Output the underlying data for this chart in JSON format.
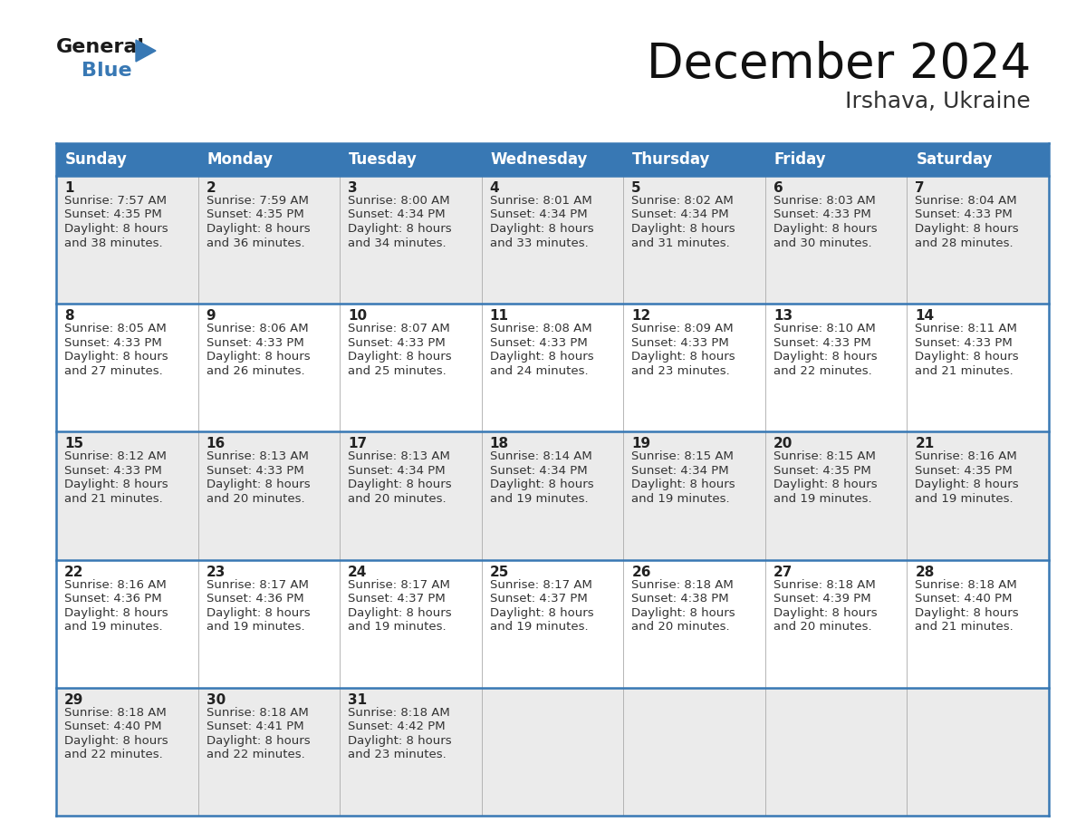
{
  "title": "December 2024",
  "subtitle": "Irshava, Ukraine",
  "header_bg": "#3878b4",
  "header_text_color": "#ffffff",
  "days_of_week": [
    "Sunday",
    "Monday",
    "Tuesday",
    "Wednesday",
    "Thursday",
    "Friday",
    "Saturday"
  ],
  "cell_bg_odd": "#ebebeb",
  "cell_bg_even": "#ffffff",
  "cell_text_color": "#333333",
  "day_num_color": "#222222",
  "border_color": "#3878b4",
  "grid_line_color": "#aaaaaa",
  "calendar": [
    [
      {
        "day": 1,
        "sunrise": "7:57 AM",
        "sunset": "4:35 PM",
        "daylight_suffix": "38 minutes."
      },
      {
        "day": 2,
        "sunrise": "7:59 AM",
        "sunset": "4:35 PM",
        "daylight_suffix": "36 minutes."
      },
      {
        "day": 3,
        "sunrise": "8:00 AM",
        "sunset": "4:34 PM",
        "daylight_suffix": "34 minutes."
      },
      {
        "day": 4,
        "sunrise": "8:01 AM",
        "sunset": "4:34 PM",
        "daylight_suffix": "33 minutes."
      },
      {
        "day": 5,
        "sunrise": "8:02 AM",
        "sunset": "4:34 PM",
        "daylight_suffix": "31 minutes."
      },
      {
        "day": 6,
        "sunrise": "8:03 AM",
        "sunset": "4:33 PM",
        "daylight_suffix": "30 minutes."
      },
      {
        "day": 7,
        "sunrise": "8:04 AM",
        "sunset": "4:33 PM",
        "daylight_suffix": "28 minutes."
      }
    ],
    [
      {
        "day": 8,
        "sunrise": "8:05 AM",
        "sunset": "4:33 PM",
        "daylight_suffix": "27 minutes."
      },
      {
        "day": 9,
        "sunrise": "8:06 AM",
        "sunset": "4:33 PM",
        "daylight_suffix": "26 minutes."
      },
      {
        "day": 10,
        "sunrise": "8:07 AM",
        "sunset": "4:33 PM",
        "daylight_suffix": "25 minutes."
      },
      {
        "day": 11,
        "sunrise": "8:08 AM",
        "sunset": "4:33 PM",
        "daylight_suffix": "24 minutes."
      },
      {
        "day": 12,
        "sunrise": "8:09 AM",
        "sunset": "4:33 PM",
        "daylight_suffix": "23 minutes."
      },
      {
        "day": 13,
        "sunrise": "8:10 AM",
        "sunset": "4:33 PM",
        "daylight_suffix": "22 minutes."
      },
      {
        "day": 14,
        "sunrise": "8:11 AM",
        "sunset": "4:33 PM",
        "daylight_suffix": "21 minutes."
      }
    ],
    [
      {
        "day": 15,
        "sunrise": "8:12 AM",
        "sunset": "4:33 PM",
        "daylight_suffix": "21 minutes."
      },
      {
        "day": 16,
        "sunrise": "8:13 AM",
        "sunset": "4:33 PM",
        "daylight_suffix": "20 minutes."
      },
      {
        "day": 17,
        "sunrise": "8:13 AM",
        "sunset": "4:34 PM",
        "daylight_suffix": "20 minutes."
      },
      {
        "day": 18,
        "sunrise": "8:14 AM",
        "sunset": "4:34 PM",
        "daylight_suffix": "19 minutes."
      },
      {
        "day": 19,
        "sunrise": "8:15 AM",
        "sunset": "4:34 PM",
        "daylight_suffix": "19 minutes."
      },
      {
        "day": 20,
        "sunrise": "8:15 AM",
        "sunset": "4:35 PM",
        "daylight_suffix": "19 minutes."
      },
      {
        "day": 21,
        "sunrise": "8:16 AM",
        "sunset": "4:35 PM",
        "daylight_suffix": "19 minutes."
      }
    ],
    [
      {
        "day": 22,
        "sunrise": "8:16 AM",
        "sunset": "4:36 PM",
        "daylight_suffix": "19 minutes."
      },
      {
        "day": 23,
        "sunrise": "8:17 AM",
        "sunset": "4:36 PM",
        "daylight_suffix": "19 minutes."
      },
      {
        "day": 24,
        "sunrise": "8:17 AM",
        "sunset": "4:37 PM",
        "daylight_suffix": "19 minutes."
      },
      {
        "day": 25,
        "sunrise": "8:17 AM",
        "sunset": "4:37 PM",
        "daylight_suffix": "19 minutes."
      },
      {
        "day": 26,
        "sunrise": "8:18 AM",
        "sunset": "4:38 PM",
        "daylight_suffix": "20 minutes."
      },
      {
        "day": 27,
        "sunrise": "8:18 AM",
        "sunset": "4:39 PM",
        "daylight_suffix": "20 minutes."
      },
      {
        "day": 28,
        "sunrise": "8:18 AM",
        "sunset": "4:40 PM",
        "daylight_suffix": "21 minutes."
      }
    ],
    [
      {
        "day": 29,
        "sunrise": "8:18 AM",
        "sunset": "4:40 PM",
        "daylight_suffix": "22 minutes."
      },
      {
        "day": 30,
        "sunrise": "8:18 AM",
        "sunset": "4:41 PM",
        "daylight_suffix": "22 minutes."
      },
      {
        "day": 31,
        "sunrise": "8:18 AM",
        "sunset": "4:42 PM",
        "daylight_suffix": "23 minutes."
      },
      null,
      null,
      null,
      null
    ]
  ],
  "figsize": [
    11.88,
    9.18
  ],
  "dpi": 100
}
